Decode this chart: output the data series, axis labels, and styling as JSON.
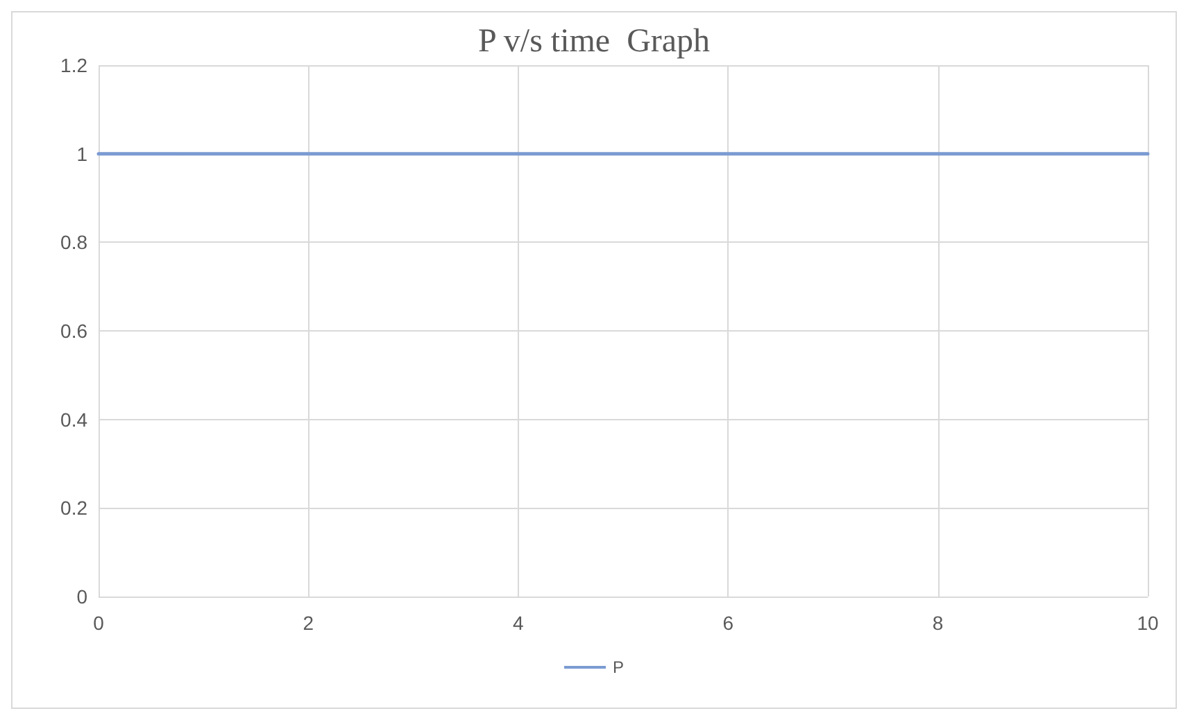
{
  "chart_data": {
    "type": "line",
    "title": "P v/s time  Graph",
    "x": [
      0,
      10
    ],
    "series": [
      {
        "name": "P",
        "color": "#7b9bd2",
        "values": [
          1,
          1
        ]
      }
    ],
    "xlim": [
      0,
      10
    ],
    "xticks": [
      0,
      2,
      4,
      6,
      8,
      10
    ],
    "ylim": [
      0,
      1.2
    ],
    "yticks": [
      0,
      0.2,
      0.4,
      0.6,
      0.8,
      1,
      1.2
    ],
    "grid": true,
    "legend": "bottom",
    "marker": "none",
    "line_style": "solid"
  }
}
